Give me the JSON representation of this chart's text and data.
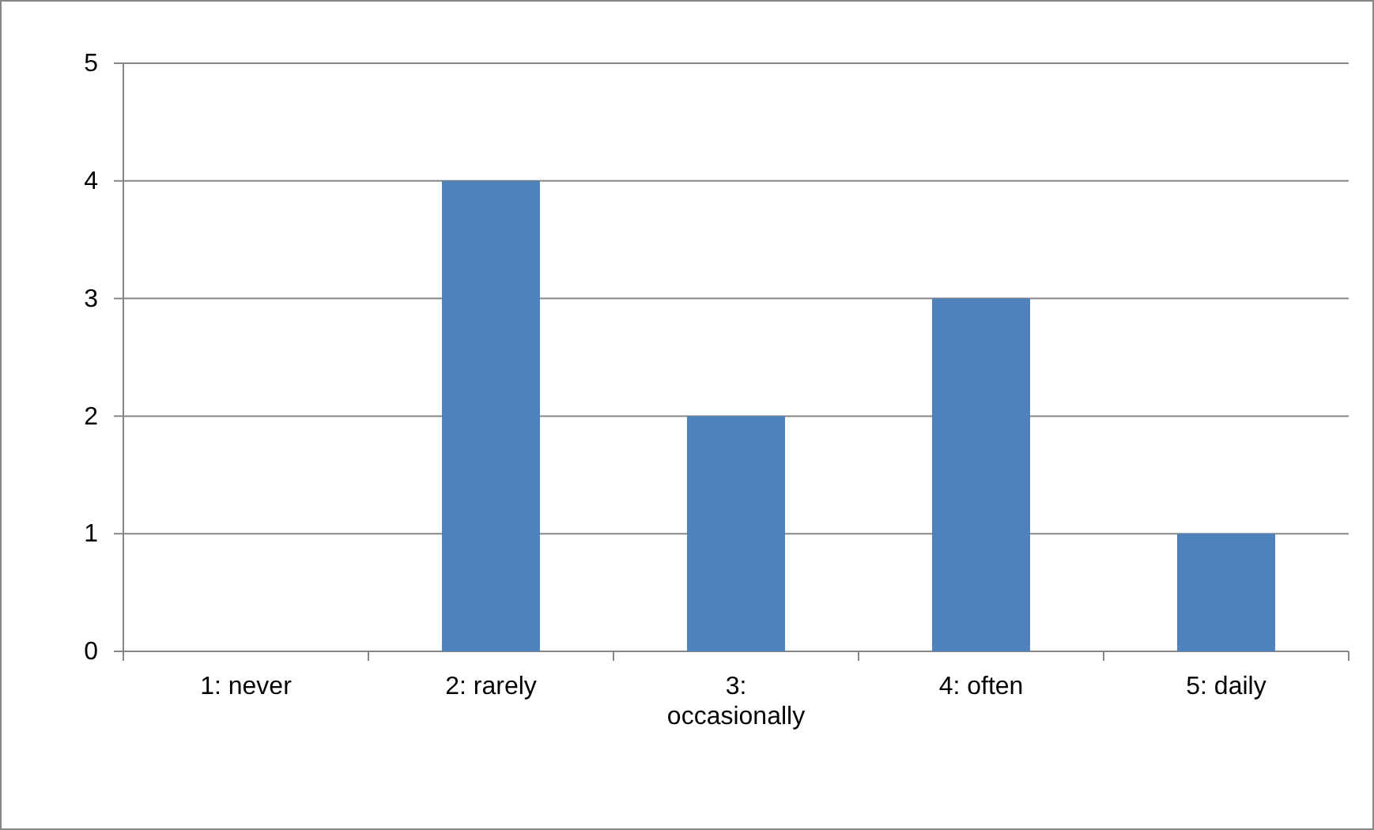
{
  "chart_data": {
    "type": "bar",
    "categories": [
      "1: never",
      "2: rarely",
      "3: occasionally",
      "4: often",
      "5: daily"
    ],
    "values": [
      0,
      4,
      2,
      3,
      1
    ],
    "color": "#4f81bd",
    "ylim": [
      0,
      5
    ],
    "yticks": [
      0,
      1,
      2,
      3,
      4,
      5
    ],
    "grid": "y"
  }
}
